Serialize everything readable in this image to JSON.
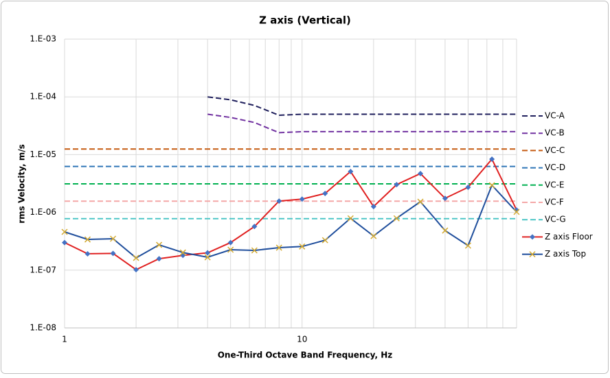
{
  "chart_data": {
    "type": "line",
    "title": "Z axis (Vertical)",
    "x_label": "One-Third Octave Band Frequency, Hz",
    "y_label": "rms Velocity, m/s",
    "xlog": true,
    "ylog": true,
    "grid": true,
    "legend": "right",
    "xlim": [
      1,
      80
    ],
    "ylim": [
      1e-08,
      0.001
    ],
    "xticks": [
      1,
      10
    ],
    "xminorticks": [
      2,
      3,
      4,
      5,
      6,
      7,
      8,
      9,
      20,
      30,
      40,
      50,
      60,
      70,
      80
    ],
    "yticks": [
      {
        "value": 1e-08,
        "label": "1.E-08"
      },
      {
        "value": 1e-07,
        "label": "1.E-07"
      },
      {
        "value": 1e-06,
        "label": "1.E-06"
      },
      {
        "value": 1e-05,
        "label": "1.E-05"
      },
      {
        "value": 0.0001,
        "label": "1.E-04"
      },
      {
        "value": 0.001,
        "label": "1.E-03"
      }
    ],
    "series": [
      {
        "name": "VC-A",
        "color": "#1f1f5c",
        "dash": true,
        "x": [
          4,
          5,
          6.3,
          8,
          10,
          12.5,
          16,
          20,
          25,
          31.5,
          40,
          50,
          63,
          80
        ],
        "values": [
          0.0001,
          8.9e-05,
          7.1e-05,
          4.8e-05,
          5e-05,
          5e-05,
          5e-05,
          5e-05,
          5e-05,
          5e-05,
          5e-05,
          5e-05,
          5e-05,
          5e-05
        ]
      },
      {
        "name": "VC-B",
        "color": "#7030a0",
        "dash": true,
        "x": [
          4,
          5,
          6.3,
          8,
          10,
          12.5,
          16,
          20,
          25,
          31.5,
          40,
          50,
          63,
          80
        ],
        "values": [
          5e-05,
          4.4e-05,
          3.6e-05,
          2.4e-05,
          2.5e-05,
          2.5e-05,
          2.5e-05,
          2.5e-05,
          2.5e-05,
          2.5e-05,
          2.5e-05,
          2.5e-05,
          2.5e-05,
          2.5e-05
        ]
      },
      {
        "name": "VC-C",
        "color": "#c55a11",
        "dash": true,
        "x": [
          1,
          80
        ],
        "values": [
          1.25e-05,
          1.25e-05
        ]
      },
      {
        "name": "VC-D",
        "color": "#2e75b6",
        "dash": true,
        "x": [
          1,
          80
        ],
        "values": [
          6.25e-06,
          6.25e-06
        ]
      },
      {
        "name": "VC-E",
        "color": "#00b050",
        "dash": true,
        "x": [
          1,
          80
        ],
        "values": [
          3.12e-06,
          3.12e-06
        ]
      },
      {
        "name": "VC-F",
        "color": "#f4a7a7",
        "dash": true,
        "x": [
          1,
          80
        ],
        "values": [
          1.56e-06,
          1.56e-06
        ]
      },
      {
        "name": "VC-G",
        "color": "#4dc6c6",
        "dash": true,
        "x": [
          1,
          80
        ],
        "values": [
          7.8e-07,
          7.8e-07
        ]
      },
      {
        "name": "Z axis Floor",
        "color": "#e02020",
        "marker": "diamond",
        "marker_color": "#4472c4",
        "x": [
          1,
          1.25,
          1.6,
          2,
          2.5,
          3.15,
          4,
          5,
          6.3,
          8,
          10,
          12.5,
          16,
          20,
          25,
          31.5,
          40,
          50,
          63,
          80
        ],
        "values": [
          3e-07,
          1.92e-07,
          1.95e-07,
          1.02e-07,
          1.58e-07,
          1.8e-07,
          2e-07,
          3e-07,
          5.7e-07,
          1.57e-06,
          1.7e-06,
          2.13e-06,
          5.1e-06,
          1.26e-06,
          3.03e-06,
          4.7e-06,
          1.75e-06,
          2.72e-06,
          8.35e-06,
          1.1e-06
        ]
      },
      {
        "name": "Z axis Top",
        "color": "#1f4e9c",
        "marker": "x",
        "marker_color": "#d4aa30",
        "x": [
          1,
          1.25,
          1.6,
          2,
          2.5,
          3.15,
          4,
          5,
          6.3,
          8,
          10,
          12.5,
          16,
          20,
          25,
          31.5,
          40,
          50,
          63,
          80
        ],
        "values": [
          4.6e-07,
          3.4e-07,
          3.5e-07,
          1.63e-07,
          2.74e-07,
          2.02e-07,
          1.67e-07,
          2.26e-07,
          2.2e-07,
          2.45e-07,
          2.57e-07,
          3.3e-07,
          7.9e-07,
          3.9e-07,
          7.9e-07,
          1.53e-06,
          4.85e-07,
          2.66e-07,
          2.95e-06,
          1.02e-06
        ]
      }
    ]
  }
}
